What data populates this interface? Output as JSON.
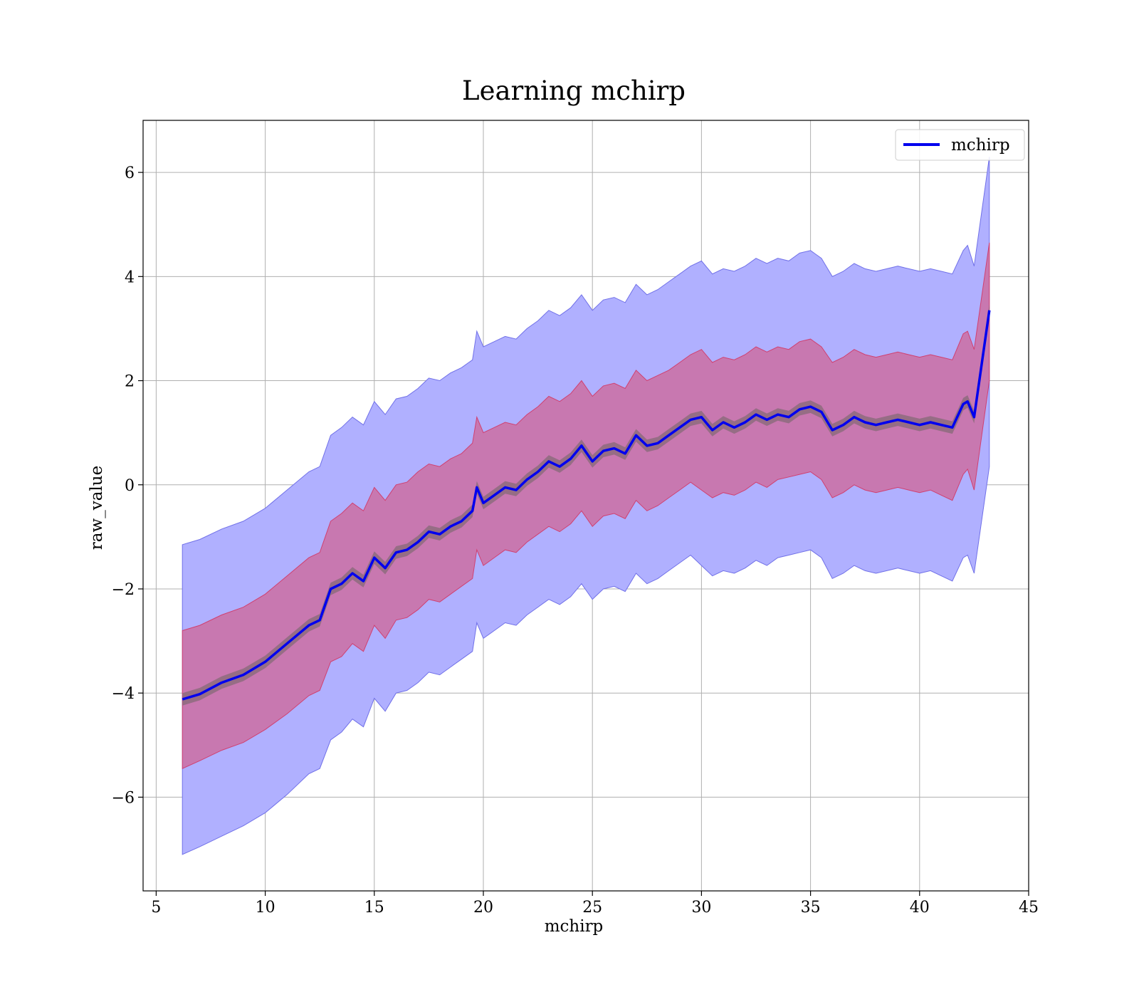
{
  "chart_data": {
    "type": "line",
    "title": "Learning mchirp",
    "xlabel": "mchirp",
    "ylabel": "raw_value",
    "xlim": [
      4.4,
      45.0
    ],
    "ylim": [
      -7.8,
      7.0
    ],
    "grid": true,
    "legend_position": "top-right",
    "x_ticks": [
      5,
      10,
      15,
      20,
      25,
      30,
      35,
      40,
      45
    ],
    "x_tick_labels": [
      "5",
      "10",
      "15",
      "20",
      "25",
      "30",
      "35",
      "40",
      "45"
    ],
    "y_ticks": [
      -6,
      -4,
      -2,
      0,
      2,
      4,
      6
    ],
    "y_tick_labels": [
      "−6",
      "−4",
      "−2",
      "0",
      "2",
      "4",
      "6"
    ],
    "colors": {
      "line": "#0000ee",
      "outer_band": "#b0b0ff",
      "outer_band_edge": "#7070e8",
      "inner_band": "#c878b0",
      "inner_band_edge": "#d04070",
      "core_band": "#8a6a7a",
      "grid": "#b0b0b0"
    },
    "series": [
      {
        "name": "mchirp",
        "x": [
          6.2,
          7.0,
          8.0,
          9.0,
          10.0,
          11.0,
          12.0,
          12.5,
          13.0,
          13.5,
          14.0,
          14.5,
          15.0,
          15.5,
          16.0,
          16.5,
          17.0,
          17.5,
          18.0,
          18.5,
          19.0,
          19.5,
          19.7,
          20.0,
          20.5,
          21.0,
          21.5,
          22.0,
          22.5,
          23.0,
          23.5,
          24.0,
          24.5,
          25.0,
          25.5,
          26.0,
          26.5,
          27.0,
          27.5,
          28.0,
          28.5,
          29.0,
          29.5,
          30.0,
          30.5,
          31.0,
          31.5,
          32.0,
          32.5,
          33.0,
          33.5,
          34.0,
          34.5,
          35.0,
          35.5,
          36.0,
          36.5,
          37.0,
          37.5,
          38.0,
          38.5,
          39.0,
          39.5,
          40.0,
          40.5,
          41.0,
          41.5,
          42.0,
          42.2,
          42.5,
          43.2
        ],
        "mean": [
          -4.12,
          -4.02,
          -3.8,
          -3.65,
          -3.4,
          -3.05,
          -2.7,
          -2.6,
          -2.0,
          -1.9,
          -1.7,
          -1.85,
          -1.4,
          -1.6,
          -1.3,
          -1.25,
          -1.1,
          -0.9,
          -0.95,
          -0.8,
          -0.7,
          -0.5,
          -0.05,
          -0.35,
          -0.2,
          -0.05,
          -0.1,
          0.1,
          0.25,
          0.45,
          0.35,
          0.5,
          0.75,
          0.45,
          0.65,
          0.7,
          0.6,
          0.95,
          0.75,
          0.8,
          0.95,
          1.1,
          1.25,
          1.3,
          1.05,
          1.2,
          1.1,
          1.2,
          1.35,
          1.25,
          1.35,
          1.3,
          1.45,
          1.5,
          1.4,
          1.05,
          1.15,
          1.3,
          1.2,
          1.15,
          1.2,
          1.25,
          1.2,
          1.15,
          1.2,
          1.15,
          1.1,
          1.55,
          1.6,
          1.3,
          3.35
        ],
        "inner_lower": [
          -5.45,
          -5.3,
          -5.1,
          -4.95,
          -4.7,
          -4.4,
          -4.05,
          -3.95,
          -3.4,
          -3.3,
          -3.05,
          -3.2,
          -2.7,
          -2.95,
          -2.6,
          -2.55,
          -2.4,
          -2.2,
          -2.25,
          -2.1,
          -1.95,
          -1.8,
          -1.25,
          -1.55,
          -1.4,
          -1.25,
          -1.3,
          -1.1,
          -0.95,
          -0.8,
          -0.9,
          -0.75,
          -0.5,
          -0.8,
          -0.6,
          -0.55,
          -0.65,
          -0.3,
          -0.5,
          -0.4,
          -0.25,
          -0.1,
          0.05,
          -0.1,
          -0.25,
          -0.15,
          -0.2,
          -0.1,
          0.05,
          -0.05,
          0.1,
          0.15,
          0.2,
          0.25,
          0.1,
          -0.25,
          -0.15,
          0.0,
          -0.1,
          -0.15,
          -0.1,
          -0.05,
          -0.1,
          -0.15,
          -0.1,
          -0.2,
          -0.3,
          0.2,
          0.3,
          -0.1,
          2.0
        ],
        "inner_upper": [
          -2.8,
          -2.7,
          -2.5,
          -2.35,
          -2.1,
          -1.75,
          -1.4,
          -1.3,
          -0.7,
          -0.55,
          -0.35,
          -0.5,
          -0.05,
          -0.3,
          0.0,
          0.05,
          0.25,
          0.4,
          0.35,
          0.5,
          0.6,
          0.8,
          1.3,
          1.0,
          1.1,
          1.2,
          1.15,
          1.35,
          1.5,
          1.7,
          1.6,
          1.75,
          2.0,
          1.7,
          1.9,
          1.95,
          1.85,
          2.2,
          2.0,
          2.1,
          2.2,
          2.35,
          2.5,
          2.6,
          2.35,
          2.45,
          2.4,
          2.5,
          2.65,
          2.55,
          2.65,
          2.6,
          2.75,
          2.8,
          2.65,
          2.35,
          2.45,
          2.6,
          2.5,
          2.45,
          2.5,
          2.55,
          2.5,
          2.45,
          2.5,
          2.45,
          2.4,
          2.9,
          2.95,
          2.6,
          4.65
        ],
        "outer_lower": [
          -7.1,
          -6.95,
          -6.75,
          -6.55,
          -6.3,
          -5.95,
          -5.55,
          -5.45,
          -4.9,
          -4.75,
          -4.5,
          -4.65,
          -4.1,
          -4.35,
          -4.0,
          -3.95,
          -3.8,
          -3.6,
          -3.65,
          -3.5,
          -3.35,
          -3.2,
          -2.65,
          -2.95,
          -2.8,
          -2.65,
          -2.7,
          -2.5,
          -2.35,
          -2.2,
          -2.3,
          -2.15,
          -1.9,
          -2.2,
          -2.0,
          -1.95,
          -2.05,
          -1.7,
          -1.9,
          -1.8,
          -1.65,
          -1.5,
          -1.35,
          -1.55,
          -1.75,
          -1.65,
          -1.7,
          -1.6,
          -1.45,
          -1.55,
          -1.4,
          -1.35,
          -1.3,
          -1.25,
          -1.4,
          -1.8,
          -1.7,
          -1.55,
          -1.65,
          -1.7,
          -1.65,
          -1.6,
          -1.65,
          -1.7,
          -1.65,
          -1.75,
          -1.85,
          -1.4,
          -1.35,
          -1.7,
          0.35
        ],
        "outer_upper": [
          -1.15,
          -1.05,
          -0.85,
          -0.7,
          -0.45,
          -0.1,
          0.25,
          0.35,
          0.95,
          1.1,
          1.3,
          1.15,
          1.6,
          1.35,
          1.65,
          1.7,
          1.85,
          2.05,
          2.0,
          2.15,
          2.25,
          2.4,
          2.95,
          2.65,
          2.75,
          2.85,
          2.8,
          3.0,
          3.15,
          3.35,
          3.25,
          3.4,
          3.65,
          3.35,
          3.55,
          3.6,
          3.5,
          3.85,
          3.65,
          3.75,
          3.9,
          4.05,
          4.2,
          4.3,
          4.05,
          4.15,
          4.1,
          4.2,
          4.35,
          4.25,
          4.35,
          4.3,
          4.45,
          4.5,
          4.35,
          4.0,
          4.1,
          4.25,
          4.15,
          4.1,
          4.15,
          4.2,
          4.15,
          4.1,
          4.15,
          4.1,
          4.05,
          4.5,
          4.6,
          4.2,
          6.3
        ]
      }
    ]
  }
}
